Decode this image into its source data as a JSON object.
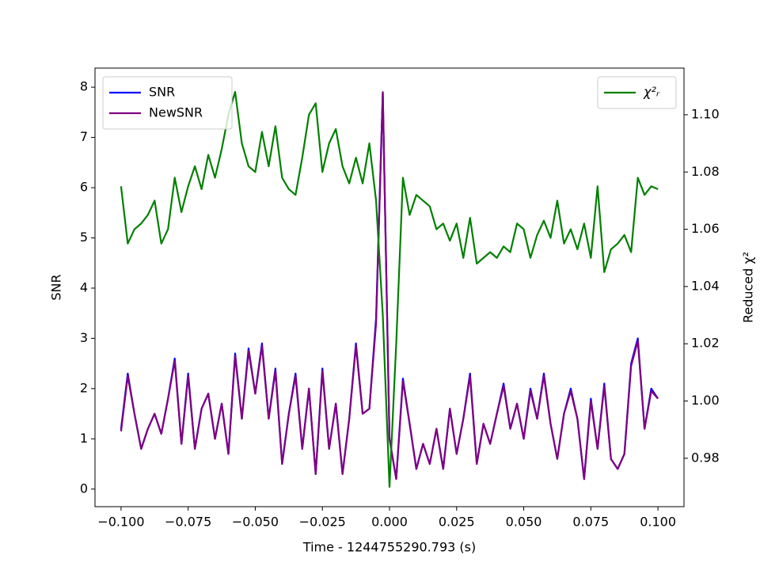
{
  "chart_data": {
    "type": "line",
    "xlabel": "Time - 1244755290.793 (s)",
    "ylabel": "SNR",
    "y2label": "Reduced χ²",
    "xlim": [
      -0.1097,
      0.1097
    ],
    "ylim": [
      -0.35,
      8.38
    ],
    "y2lim": [
      0.9631,
      1.1163
    ],
    "xticks": [
      {
        "value": -0.1,
        "label": "−0.100"
      },
      {
        "value": -0.075,
        "label": "−0.075"
      },
      {
        "value": -0.05,
        "label": "−0.050"
      },
      {
        "value": -0.025,
        "label": "−0.025"
      },
      {
        "value": 0,
        "label": "0.000"
      },
      0.025,
      {
        "value": 0.05,
        "label": "0.050"
      },
      0.075,
      {
        "value": 0.1,
        "label": "0.100"
      }
    ],
    "yticks": [
      0,
      1,
      2,
      3,
      4,
      5,
      6,
      7,
      8
    ],
    "y2ticks": [
      0.98,
      {
        "value": 1.0,
        "label": "1.00"
      },
      1.02,
      1.04,
      1.06,
      1.08,
      {
        "value": 1.1,
        "label": "1.10"
      }
    ],
    "legend_loc": "upper left",
    "legend2_loc": "upper right",
    "x": [
      -0.1,
      -0.0975,
      -0.095,
      -0.0925,
      -0.09,
      -0.0875,
      -0.085,
      -0.0825,
      -0.08,
      -0.0775,
      -0.075,
      -0.0725,
      -0.07,
      -0.0675,
      -0.065,
      -0.0625,
      -0.06,
      -0.0575,
      -0.055,
      -0.0525,
      -0.05,
      -0.0475,
      -0.045,
      -0.0425,
      -0.04,
      -0.0375,
      -0.035,
      -0.0325,
      -0.03,
      -0.0275,
      -0.025,
      -0.0225,
      -0.02,
      -0.0175,
      -0.015,
      -0.0125,
      -0.01,
      -0.0075,
      -0.005,
      -0.0025,
      0,
      0.0025,
      0.005,
      0.0075,
      0.01,
      0.0125,
      0.015,
      0.0175,
      0.02,
      0.0225,
      0.025,
      0.0275,
      0.03,
      0.0325,
      0.035,
      0.0375,
      0.04,
      0.0425,
      0.045,
      0.0475,
      0.05,
      0.0525,
      0.055,
      0.0575,
      0.06,
      0.0625,
      0.065,
      0.0675,
      0.07,
      0.0725,
      0.075,
      0.0775,
      0.08,
      0.0825,
      0.085,
      0.0875,
      0.09,
      0.0925,
      0.095,
      0.0975,
      0.1
    ],
    "series": [
      {
        "name": "SNR",
        "color": "#0000ff",
        "axis": "y",
        "values": [
          1.2,
          2.3,
          1.5,
          0.8,
          1.2,
          1.5,
          1.1,
          1.8,
          2.6,
          0.9,
          2.3,
          0.8,
          1.6,
          1.9,
          1.0,
          1.7,
          0.7,
          2.7,
          1.4,
          2.8,
          1.9,
          2.9,
          1.4,
          2.4,
          0.5,
          1.5,
          2.3,
          0.8,
          2.0,
          0.3,
          2.4,
          0.8,
          1.7,
          0.3,
          1.4,
          2.9,
          1.5,
          1.6,
          3.4,
          7.9,
          1.0,
          0.2,
          2.2,
          1.3,
          0.4,
          0.9,
          0.5,
          1.2,
          0.4,
          1.6,
          0.7,
          1.4,
          2.3,
          0.5,
          1.3,
          0.9,
          1.5,
          2.1,
          1.2,
          1.7,
          1.0,
          2.0,
          1.4,
          2.3,
          1.3,
          0.6,
          1.5,
          2.0,
          1.4,
          0.2,
          1.8,
          0.8,
          2.1,
          0.6,
          0.4,
          0.7,
          2.5,
          3.0,
          1.2,
          2.0,
          1.8
        ]
      },
      {
        "name": "NewSNR",
        "color": "#800080",
        "axis": "y",
        "values": [
          1.15,
          2.25,
          1.5,
          0.8,
          1.2,
          1.5,
          1.1,
          1.8,
          2.55,
          0.9,
          2.25,
          0.8,
          1.6,
          1.9,
          1.0,
          1.7,
          0.7,
          2.65,
          1.4,
          2.75,
          1.9,
          2.85,
          1.4,
          2.35,
          0.5,
          1.5,
          2.25,
          0.8,
          2.0,
          0.3,
          2.35,
          0.8,
          1.7,
          0.3,
          1.4,
          2.85,
          1.5,
          1.6,
          3.3,
          7.9,
          1.0,
          0.2,
          2.15,
          1.3,
          0.4,
          0.9,
          0.5,
          1.2,
          0.4,
          1.6,
          0.7,
          1.4,
          2.25,
          0.5,
          1.3,
          0.9,
          1.5,
          2.05,
          1.2,
          1.7,
          1.0,
          1.95,
          1.4,
          2.25,
          1.3,
          0.6,
          1.5,
          1.95,
          1.4,
          0.2,
          1.75,
          0.8,
          2.05,
          0.6,
          0.4,
          0.7,
          2.45,
          2.95,
          1.2,
          1.95,
          1.8
        ]
      },
      {
        "name": "χ²ᵣ",
        "color": "#008000",
        "axis": "y2",
        "values": [
          1.075,
          1.055,
          1.06,
          1.062,
          1.065,
          1.07,
          1.055,
          1.06,
          1.078,
          1.066,
          1.075,
          1.082,
          1.074,
          1.086,
          1.078,
          1.088,
          1.1,
          1.108,
          1.09,
          1.082,
          1.08,
          1.094,
          1.082,
          1.096,
          1.078,
          1.074,
          1.072,
          1.085,
          1.1,
          1.104,
          1.08,
          1.09,
          1.095,
          1.082,
          1.076,
          1.085,
          1.076,
          1.09,
          1.07,
          1.03,
          0.97,
          1.02,
          1.078,
          1.065,
          1.072,
          1.07,
          1.068,
          1.06,
          1.062,
          1.056,
          1.062,
          1.05,
          1.064,
          1.048,
          1.05,
          1.052,
          1.05,
          1.054,
          1.052,
          1.062,
          1.06,
          1.05,
          1.058,
          1.063,
          1.057,
          1.07,
          1.055,
          1.06,
          1.053,
          1.062,
          1.05,
          1.075,
          1.045,
          1.053,
          1.055,
          1.058,
          1.052,
          1.078,
          1.072,
          1.075,
          1.074
        ]
      }
    ]
  }
}
